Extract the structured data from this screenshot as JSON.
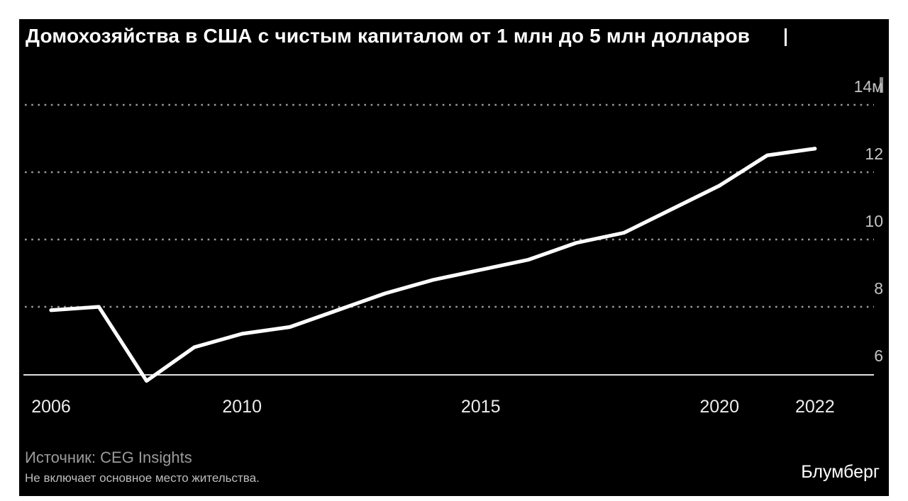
{
  "header": {
    "title": "Домохозяйства в США с чистым капиталом от 1 млн до 5 млн долларов"
  },
  "footer": {
    "source": "Источник: CEG Insights",
    "note": "Не включает основное место жительства.",
    "brand": "Блумберг"
  },
  "chart_data": {
    "type": "line",
    "title": "Домохозяйства в США с чистым капиталом от 1 млн до 5 млн долларов",
    "x": [
      2006,
      2007,
      2008,
      2009,
      2010,
      2011,
      2012,
      2013,
      2014,
      2015,
      2016,
      2017,
      2018,
      2019,
      2020,
      2021,
      2022
    ],
    "values": [
      7.9,
      8.0,
      5.8,
      6.8,
      7.2,
      7.4,
      7.9,
      8.4,
      8.8,
      9.1,
      9.4,
      9.9,
      10.2,
      10.9,
      11.6,
      12.5,
      12.7
    ],
    "x_ticks": [
      {
        "value": 2006,
        "label": "2006"
      },
      {
        "value": 2010,
        "label": "2010"
      },
      {
        "value": 2015,
        "label": "2015"
      },
      {
        "value": 2020,
        "label": "2020"
      },
      {
        "value": 2022,
        "label": "2022"
      }
    ],
    "y_ticks": [
      {
        "value": 14,
        "label": "14м"
      },
      {
        "value": 12,
        "label": "12"
      },
      {
        "value": 10,
        "label": "10"
      },
      {
        "value": 8,
        "label": "8"
      },
      {
        "value": 6,
        "label": "6"
      }
    ],
    "y_gridlines": [
      14,
      12,
      10,
      8
    ],
    "baseline_value": 6,
    "ylim": [
      5.5,
      14.9
    ],
    "xlim": [
      2005.4,
      2023.2
    ],
    "grid": "horizontal-dotted",
    "legend": "none"
  },
  "colors": {
    "page_bg": "#ffffff",
    "card_bg": "#000000",
    "line": "#ffffff",
    "grid": "#9b9b9b",
    "axis": "#e0e0e0",
    "title": "#ffffff",
    "xlabel": "#ececec",
    "ylabel": "#c4c4c4",
    "source": "#9b9b9b",
    "note": "#bdbdbd",
    "brand": "#ffffff"
  }
}
